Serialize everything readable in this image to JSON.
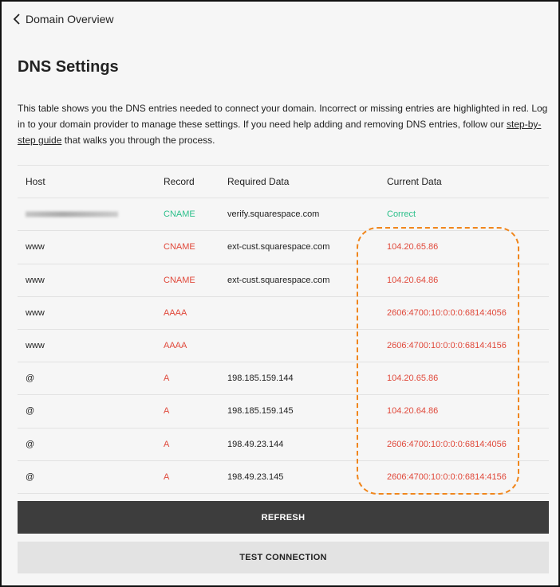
{
  "nav": {
    "back_label": "Domain Overview",
    "back_icon": "chevron-left-icon"
  },
  "page": {
    "title": "DNS Settings",
    "description_before": "This table shows you the DNS entries needed to connect your domain. Incorrect or missing entries are highlighted in red. Log in to your domain provider to manage these settings. If you need help adding and removing DNS entries, follow our ",
    "link_text": "step-by-step guide",
    "description_after": " that walks you through the process."
  },
  "colors": {
    "correct": "#2bbf8a",
    "error": "#e0483a",
    "highlight": "#f0861c"
  },
  "table": {
    "headers": [
      "Host",
      "Record",
      "Required Data",
      "Current Data"
    ],
    "rows": [
      {
        "host": "",
        "host_redacted": true,
        "record": "CNAME",
        "required": "verify.squarespace.com",
        "current": "Correct",
        "status": "correct"
      },
      {
        "host": "www",
        "record": "CNAME",
        "required": "ext-cust.squarespace.com",
        "current": "104.20.65.86",
        "status": "error"
      },
      {
        "host": "www",
        "record": "CNAME",
        "required": "ext-cust.squarespace.com",
        "current": "104.20.64.86",
        "status": "error"
      },
      {
        "host": "www",
        "record": "AAAA",
        "required": "",
        "current": "2606:4700:10:0:0:0:6814:4056",
        "status": "error"
      },
      {
        "host": "www",
        "record": "AAAA",
        "required": "",
        "current": "2606:4700:10:0:0:0:6814:4156",
        "status": "error"
      },
      {
        "host": "@",
        "record": "A",
        "required": "198.185.159.144",
        "current": "104.20.65.86",
        "status": "error"
      },
      {
        "host": "@",
        "record": "A",
        "required": "198.185.159.145",
        "current": "104.20.64.86",
        "status": "error"
      },
      {
        "host": "@",
        "record": "A",
        "required": "198.49.23.144",
        "current": "2606:4700:10:0:0:0:6814:4056",
        "status": "error"
      },
      {
        "host": "@",
        "record": "A",
        "required": "198.49.23.145",
        "current": "2606:4700:10:0:0:0:6814:4156",
        "status": "error"
      }
    ]
  },
  "buttons": {
    "refresh": "REFRESH",
    "test": "TEST CONNECTION"
  }
}
